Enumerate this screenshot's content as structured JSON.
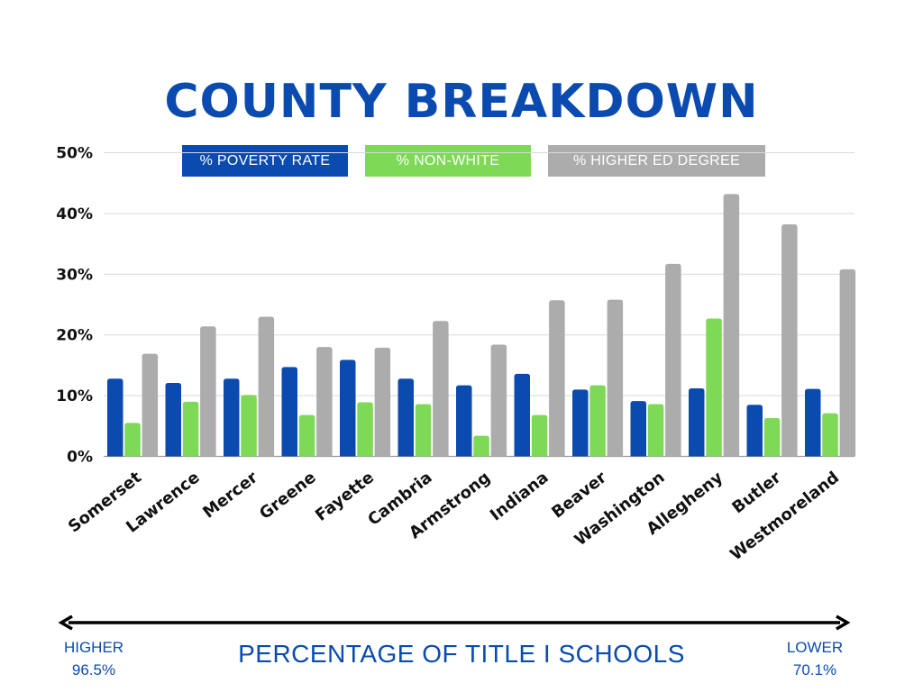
{
  "chart_data": {
    "type": "bar",
    "title": "COUNTY BREAKDOWN",
    "categories": [
      "Somerset",
      "Lawrence",
      "Mercer",
      "Greene",
      "Fayette",
      "Cambria",
      "Armstrong",
      "Indiana",
      "Beaver",
      "Washington",
      "Allegheny",
      "Butler",
      "Westmoreland"
    ],
    "series": [
      {
        "name": "% POVERTY RATE",
        "color": "#0b4bb0",
        "values": [
          12.8,
          12.1,
          12.8,
          14.7,
          15.9,
          12.8,
          11.7,
          13.6,
          11.0,
          9.1,
          11.2,
          8.5,
          11.1
        ]
      },
      {
        "name": "% NON-WHITE",
        "color": "#7ed957",
        "values": [
          5.5,
          9.0,
          10.1,
          6.8,
          8.9,
          8.6,
          3.4,
          6.8,
          11.7,
          8.6,
          22.7,
          6.3,
          7.1
        ]
      },
      {
        "name": "% HIGHER ED DEGREE",
        "color": "#acacac",
        "values": [
          16.9,
          21.4,
          23.0,
          18.0,
          17.9,
          22.3,
          18.4,
          25.7,
          25.8,
          31.7,
          43.2,
          38.2,
          30.8
        ]
      }
    ],
    "ylim": [
      0,
      50
    ],
    "yticks": [
      "0%",
      "10%",
      "20%",
      "30%",
      "40%",
      "50%"
    ],
    "grid": true,
    "legend_position": "top",
    "xlabel": "PERCENTAGE OF TITLE I SCHOOLS",
    "ylabel": ""
  },
  "axis_ends": {
    "left": {
      "label": "HIGHER",
      "value": "96.5%"
    },
    "right": {
      "label": "LOWER",
      "value": "70.1%"
    }
  }
}
